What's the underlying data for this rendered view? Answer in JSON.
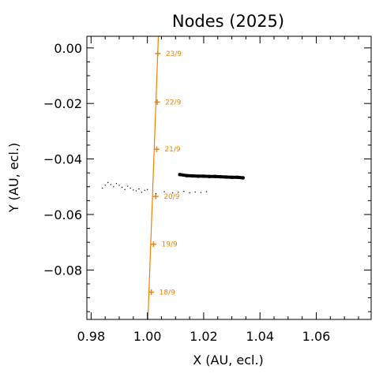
{
  "chart_data": {
    "type": "scatter",
    "title": "Nodes (2025)",
    "xlabel": "X (AU, ecl.)",
    "ylabel": "Y (AU, ecl.)",
    "xlim": [
      0.9785,
      1.0795
    ],
    "ylim": [
      -0.0978,
      0.0042
    ],
    "x_ticks": [
      0.98,
      1.0,
      1.02,
      1.04,
      1.06
    ],
    "x_tick_labels": [
      "0.98",
      "1.00",
      "1.02",
      "1.04",
      "1.06"
    ],
    "y_ticks": [
      0.0,
      -0.02,
      -0.04,
      -0.06,
      -0.08
    ],
    "y_tick_labels": [
      "0.00",
      "−0.02",
      "−0.04",
      "−0.06",
      "−0.08"
    ],
    "grid": false,
    "colors": {
      "track": "#f08000",
      "nodes": "#000000",
      "axes": "#000000"
    },
    "series": [
      {
        "kind": "line",
        "x": [
          1.0002,
          1.0039
        ],
        "y": [
          -0.0978,
          0.0042
        ]
      },
      {
        "kind": "markers",
        "labels": [
          "23/9",
          "22/9",
          "21/9",
          "20/9",
          "19/9",
          "18/9"
        ],
        "x": [
          1.0037,
          1.0035,
          1.0033,
          1.003,
          1.0022,
          1.0014
        ],
        "y": [
          -0.002,
          -0.0195,
          -0.0365,
          -0.0535,
          -0.0707,
          -0.088
        ]
      },
      {
        "kind": "points-dense",
        "x": [
          1.0115,
          1.014,
          1.016,
          1.018,
          1.02,
          1.022,
          1.024,
          1.026,
          1.028,
          1.03,
          1.032,
          1.034
        ],
        "y": [
          -0.0456,
          -0.046,
          -0.0461,
          -0.0462,
          -0.0462,
          -0.0463,
          -0.0463,
          -0.0464,
          -0.0465,
          -0.0466,
          -0.0466,
          -0.0468
        ]
      },
      {
        "kind": "points-sparse",
        "x": [
          0.984,
          0.985,
          0.986,
          0.987,
          0.988,
          0.989,
          0.99,
          0.991,
          0.992,
          0.993,
          0.994,
          0.995,
          0.996,
          0.997,
          0.998,
          0.999,
          1.0,
          1.003,
          1.006,
          1.009,
          1.011,
          1.013,
          1.015,
          1.017,
          1.019,
          1.021
        ],
        "y": [
          -0.0505,
          -0.0495,
          -0.0485,
          -0.0492,
          -0.05,
          -0.0488,
          -0.0495,
          -0.0502,
          -0.051,
          -0.0498,
          -0.0505,
          -0.0512,
          -0.0515,
          -0.0508,
          -0.052,
          -0.0513,
          -0.051,
          -0.0525,
          -0.0518,
          -0.0522,
          -0.052,
          -0.0517,
          -0.0522,
          -0.0519,
          -0.0521,
          -0.0518
        ]
      }
    ]
  }
}
